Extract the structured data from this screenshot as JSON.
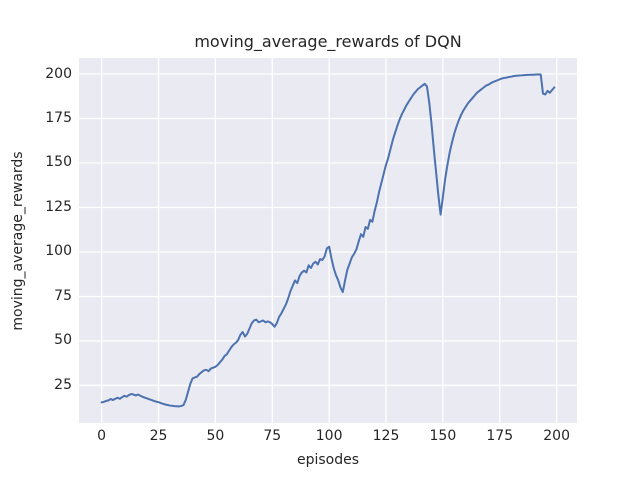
{
  "figure": {
    "background": "#ffffff"
  },
  "chart_data": {
    "type": "line",
    "title": "moving_average_rewards of DQN",
    "xlabel": "episodes",
    "ylabel": "moving_average_rewards",
    "grid": true,
    "legend": "none",
    "xticks": [
      0,
      25,
      50,
      75,
      100,
      125,
      150,
      175,
      200
    ],
    "yticks": [
      25,
      50,
      75,
      100,
      125,
      150,
      175,
      200
    ],
    "xlim": [
      -9.95,
      208.95
    ],
    "ylim": [
      3.9,
      209.0
    ],
    "style": {
      "axes_background": "#eaeaf2",
      "grid_color": "#ffffff",
      "text_color": "#262626",
      "line_color": "#4c72b0",
      "line_width": 2
    },
    "series": [
      {
        "name": "DQN moving average reward",
        "color": "#4c72b0",
        "x": [
          0,
          1,
          2,
          3,
          4,
          5,
          6,
          7,
          8,
          9,
          10,
          11,
          12,
          13,
          14,
          15,
          16,
          17,
          18,
          19,
          20,
          21,
          22,
          23,
          24,
          25,
          26,
          27,
          28,
          29,
          30,
          31,
          32,
          33,
          34,
          35,
          36,
          37,
          38,
          39,
          40,
          41,
          42,
          43,
          44,
          45,
          46,
          47,
          48,
          49,
          50,
          51,
          52,
          53,
          54,
          55,
          56,
          57,
          58,
          59,
          60,
          61,
          62,
          63,
          64,
          65,
          66,
          67,
          68,
          69,
          70,
          71,
          72,
          73,
          74,
          75,
          76,
          77,
          78,
          79,
          80,
          81,
          82,
          83,
          84,
          85,
          86,
          87,
          88,
          89,
          90,
          91,
          92,
          93,
          94,
          95,
          96,
          97,
          98,
          99,
          100,
          101,
          102,
          103,
          104,
          105,
          106,
          107,
          108,
          109,
          110,
          111,
          112,
          113,
          114,
          115,
          116,
          117,
          118,
          119,
          120,
          121,
          122,
          123,
          124,
          125,
          126,
          127,
          128,
          129,
          130,
          131,
          132,
          133,
          134,
          135,
          136,
          137,
          138,
          139,
          140,
          141,
          142,
          143,
          144,
          145,
          146,
          147,
          148,
          149,
          150,
          151,
          152,
          153,
          154,
          155,
          156,
          157,
          158,
          159,
          160,
          161,
          162,
          163,
          164,
          165,
          166,
          167,
          168,
          169,
          170,
          171,
          172,
          173,
          174,
          175,
          176,
          177,
          178,
          179,
          180,
          181,
          182,
          183,
          184,
          185,
          186,
          187,
          188,
          189,
          190,
          191,
          192,
          193,
          194,
          195,
          196,
          197,
          198,
          199
        ],
        "y": [
          15.5,
          15.8,
          16.3,
          16.6,
          17.4,
          16.8,
          17.5,
          18.1,
          17.5,
          18.4,
          19.2,
          18.7,
          19.6,
          20.2,
          19.9,
          19.4,
          19.9,
          19.2,
          18.6,
          18.1,
          17.7,
          17.2,
          16.8,
          16.3,
          15.9,
          15.6,
          15.1,
          14.7,
          14.3,
          14.0,
          13.7,
          13.6,
          13.4,
          13.3,
          13.2,
          13.5,
          14.0,
          17.0,
          21.5,
          26.0,
          29.0,
          29.5,
          30.0,
          31.5,
          32.5,
          33.5,
          33.8,
          33.0,
          34.5,
          35.0,
          35.5,
          36.5,
          38.0,
          39.5,
          41.5,
          42.5,
          44.5,
          46.5,
          48.0,
          49.0,
          50.5,
          53.5,
          55.0,
          52.5,
          54.0,
          57.0,
          60.0,
          61.5,
          62.0,
          60.5,
          61.0,
          61.5,
          60.5,
          61.0,
          60.5,
          59.5,
          58.0,
          60.0,
          63.5,
          65.5,
          68.0,
          70.5,
          74.0,
          78.0,
          81.0,
          84.0,
          82.5,
          86.5,
          88.5,
          89.5,
          88.5,
          92.5,
          91.0,
          93.5,
          94.5,
          93.0,
          96.0,
          95.5,
          97.5,
          102.0,
          103.0,
          96.5,
          91.0,
          87.0,
          84.0,
          80.0,
          77.5,
          84.0,
          90.0,
          93.5,
          97.0,
          99.0,
          101.5,
          106.0,
          110.0,
          108.5,
          114.0,
          113.0,
          118.0,
          117.0,
          123.0,
          128.0,
          134.0,
          139.0,
          144.0,
          149.0,
          153.0,
          158.0,
          163.0,
          167.0,
          171.0,
          174.5,
          177.5,
          180.0,
          182.5,
          184.5,
          186.5,
          188.5,
          190.0,
          191.5,
          192.5,
          193.5,
          194.5,
          193.0,
          184.0,
          172.0,
          158.0,
          145.0,
          132.0,
          121.0,
          131.0,
          141.0,
          149.0,
          156.0,
          161.5,
          166.5,
          170.5,
          174.0,
          177.0,
          179.5,
          181.5,
          183.5,
          185.0,
          186.5,
          188.0,
          189.5,
          190.5,
          191.5,
          192.5,
          193.5,
          194.0,
          194.8,
          195.5,
          196.0,
          196.5,
          197.0,
          197.5,
          197.8,
          198.0,
          198.3,
          198.5,
          198.8,
          199.0,
          199.1,
          199.2,
          199.3,
          199.4,
          199.5,
          199.5,
          199.6,
          199.6,
          199.7,
          199.7,
          199.7,
          189.0,
          188.5,
          190.5,
          189.5,
          191.0,
          192.5
        ]
      }
    ]
  }
}
